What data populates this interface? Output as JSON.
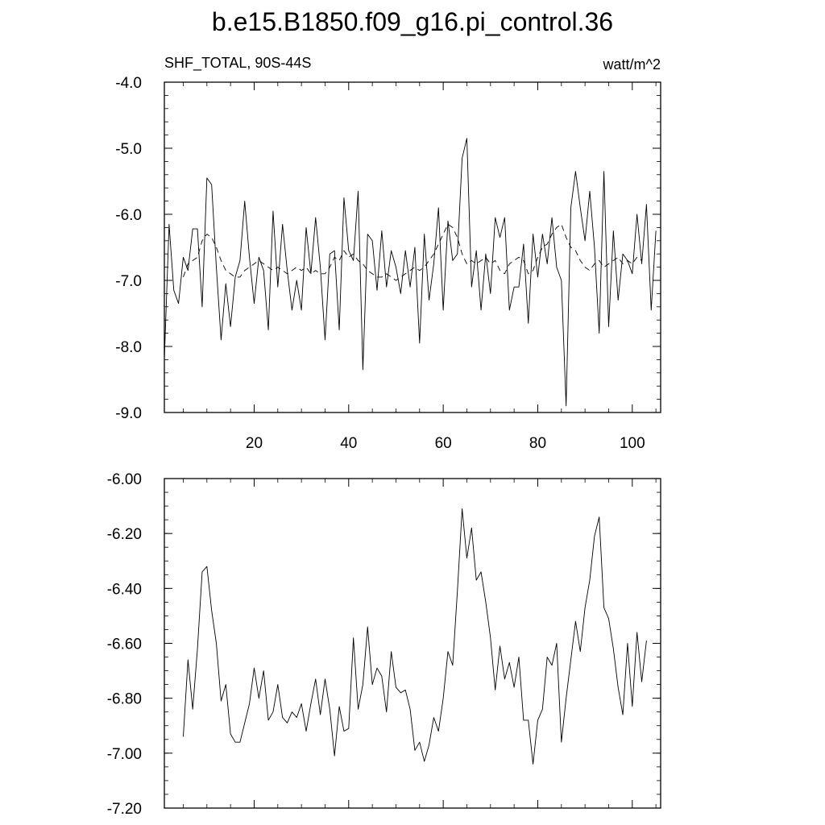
{
  "figure": {
    "title": "b.e15.B1850.f09_g16.pi_control.36"
  },
  "chart_data": [
    {
      "type": "line",
      "left_label": "SHF_TOTAL, 90S-44S",
      "right_label": "watt/m^2",
      "xlim": [
        1,
        106
      ],
      "ylim": [
        -9.0,
        -4.0
      ],
      "x_tick_labels": [
        "20",
        "40",
        "60",
        "80",
        "100"
      ],
      "x_ticks": [
        20,
        40,
        60,
        80,
        100
      ],
      "y_tick_labels": [
        "-4.0",
        "-5.0",
        "-6.0",
        "-7.0",
        "-8.0",
        "-9.0"
      ],
      "y_ticks": [
        -4.0,
        -5.0,
        -6.0,
        -7.0,
        -8.0,
        -9.0
      ],
      "series": [
        {
          "style": "solid",
          "x_start": 1,
          "values": [
            -8.2,
            -6.15,
            -7.15,
            -7.35,
            -6.65,
            -6.85,
            -6.22,
            -6.22,
            -7.4,
            -5.45,
            -5.55,
            -6.8,
            -7.9,
            -7.05,
            -7.7,
            -6.95,
            -6.7,
            -5.8,
            -6.65,
            -7.35,
            -6.65,
            -6.85,
            -7.75,
            -5.95,
            -7.1,
            -6.15,
            -6.85,
            -7.45,
            -7.0,
            -7.45,
            -6.2,
            -6.9,
            -6.05,
            -6.8,
            -7.9,
            -6.6,
            -6.55,
            -7.75,
            -5.75,
            -6.55,
            -6.7,
            -5.65,
            -8.35,
            -6.3,
            -6.4,
            -7.15,
            -6.25,
            -7.1,
            -6.55,
            -6.8,
            -7.2,
            -6.55,
            -7.1,
            -6.5,
            -7.95,
            -6.3,
            -7.3,
            -6.75,
            -5.9,
            -7.45,
            -6.1,
            -6.7,
            -6.6,
            -5.15,
            -4.85,
            -7.1,
            -6.55,
            -7.45,
            -6.6,
            -7.2,
            -6.05,
            -6.35,
            -6.05,
            -7.45,
            -7.1,
            -7.1,
            -6.45,
            -7.65,
            -6.3,
            -6.95,
            -6.3,
            -6.75,
            -6.05,
            -6.8,
            -7.0,
            -8.9,
            -5.9,
            -5.35,
            -5.9,
            -6.4,
            -5.65,
            -6.5,
            -7.8,
            -5.35,
            -7.7,
            -6.25,
            -7.3,
            -6.6,
            -6.7,
            -6.9,
            -6.0,
            -6.75,
            -5.85,
            -7.45,
            -6.25
          ]
        },
        {
          "style": "dashed",
          "x_start": 5,
          "values": [
            -6.95,
            -6.75,
            -6.7,
            -6.65,
            -6.4,
            -6.3,
            -6.35,
            -6.5,
            -6.7,
            -6.85,
            -6.9,
            -6.95,
            -6.95,
            -6.85,
            -6.8,
            -6.75,
            -6.7,
            -6.75,
            -6.8,
            -6.85,
            -6.8,
            -6.85,
            -6.9,
            -6.85,
            -6.8,
            -6.85,
            -6.8,
            -6.9,
            -6.85,
            -6.9,
            -6.9,
            -6.8,
            -6.65,
            -6.7,
            -6.55,
            -6.65,
            -6.6,
            -6.7,
            -6.75,
            -6.85,
            -6.9,
            -6.95,
            -6.95,
            -6.9,
            -6.95,
            -7.0,
            -6.95,
            -6.9,
            -6.85,
            -6.8,
            -6.85,
            -6.8,
            -6.7,
            -6.6,
            -6.45,
            -6.3,
            -6.15,
            -6.2,
            -6.35,
            -6.6,
            -6.75,
            -6.7,
            -6.75,
            -6.7,
            -6.65,
            -6.75,
            -6.7,
            -6.85,
            -6.9,
            -6.75,
            -6.7,
            -6.65,
            -6.7,
            -6.9,
            -6.85,
            -6.65,
            -6.5,
            -6.45,
            -6.3,
            -6.2,
            -6.15,
            -6.35,
            -6.5,
            -6.55,
            -6.7,
            -6.8,
            -6.85,
            -6.75,
            -6.7,
            -6.8,
            -6.75,
            -6.7,
            -6.65,
            -6.75,
            -6.7,
            -6.75,
            -6.65,
            -6.7
          ]
        }
      ]
    },
    {
      "type": "line",
      "xlim": [
        1,
        106
      ],
      "ylim": [
        -7.2,
        -6.0
      ],
      "x_ticks": [
        20,
        40,
        60,
        80,
        100
      ],
      "y_tick_labels": [
        "-6.00",
        "-6.20",
        "-6.40",
        "-6.60",
        "-6.80",
        "-7.00",
        "-7.20"
      ],
      "y_ticks": [
        -6.0,
        -6.2,
        -6.4,
        -6.6,
        -6.8,
        -7.0,
        -7.2
      ],
      "series": [
        {
          "style": "solid",
          "x_start": 5,
          "values": [
            -6.94,
            -6.66,
            -6.84,
            -6.62,
            -6.34,
            -6.32,
            -6.48,
            -6.6,
            -6.81,
            -6.75,
            -6.93,
            -6.96,
            -6.96,
            -6.89,
            -6.82,
            -6.69,
            -6.8,
            -6.7,
            -6.88,
            -6.85,
            -6.75,
            -6.87,
            -6.89,
            -6.85,
            -6.87,
            -6.82,
            -6.92,
            -6.82,
            -6.73,
            -6.86,
            -6.73,
            -6.84,
            -7.01,
            -6.83,
            -6.92,
            -6.91,
            -6.58,
            -6.84,
            -6.75,
            -6.54,
            -6.75,
            -6.69,
            -6.72,
            -6.85,
            -6.63,
            -6.76,
            -6.78,
            -6.77,
            -6.84,
            -6.99,
            -6.96,
            -7.03,
            -6.97,
            -6.87,
            -6.92,
            -6.8,
            -6.63,
            -6.68,
            -6.41,
            -6.11,
            -6.29,
            -6.18,
            -6.37,
            -6.34,
            -6.45,
            -6.58,
            -6.77,
            -6.61,
            -6.73,
            -6.67,
            -6.76,
            -6.65,
            -6.88,
            -6.88,
            -7.04,
            -6.88,
            -6.84,
            -6.65,
            -6.68,
            -6.6,
            -6.96,
            -6.8,
            -6.66,
            -6.52,
            -6.63,
            -6.47,
            -6.37,
            -6.21,
            -6.14,
            -6.47,
            -6.51,
            -6.62,
            -6.76,
            -6.86,
            -6.6,
            -6.83,
            -6.56,
            -6.74,
            -6.59
          ]
        }
      ]
    }
  ]
}
